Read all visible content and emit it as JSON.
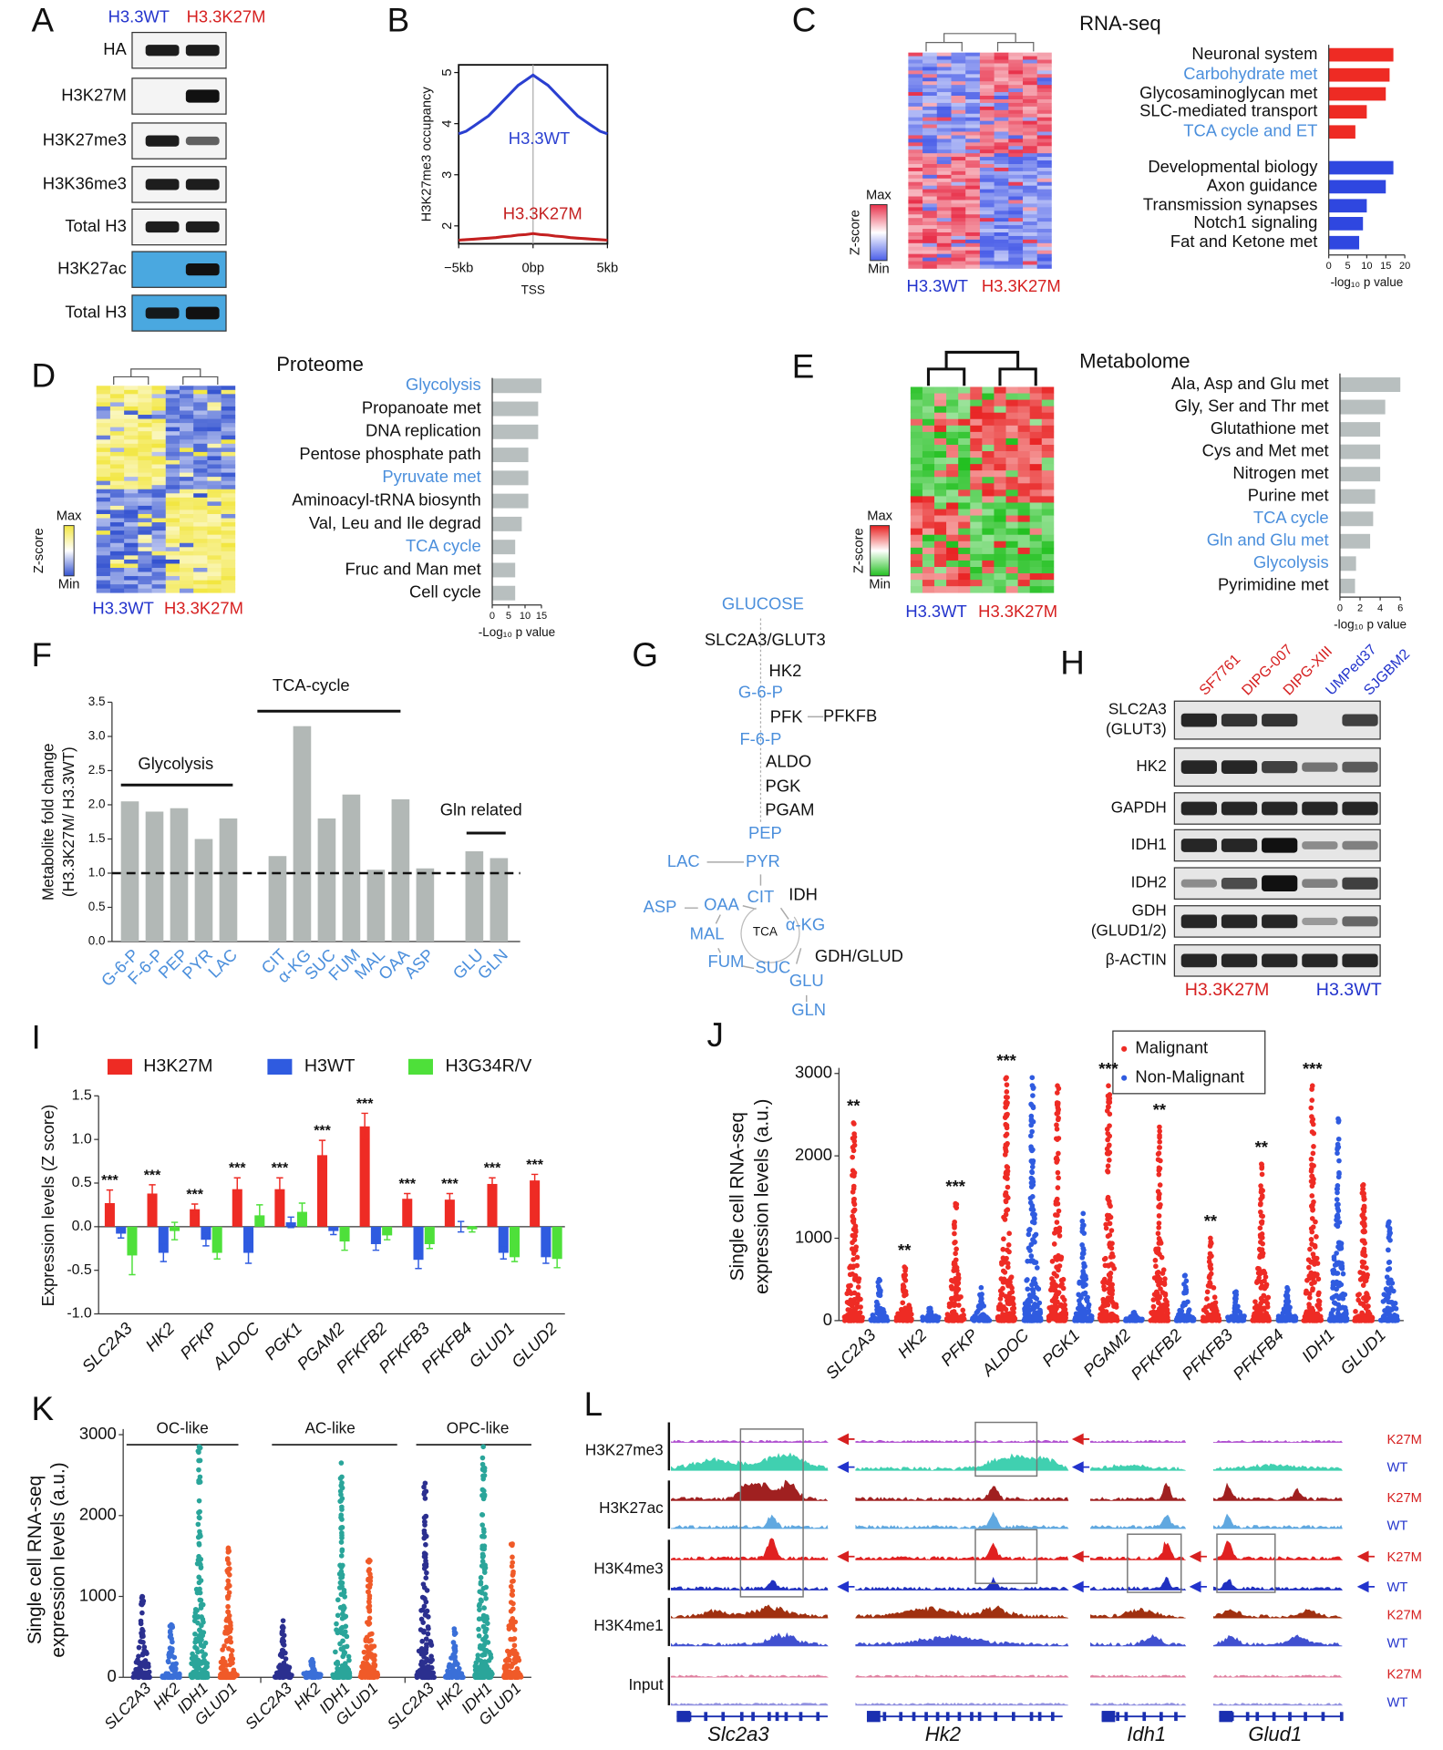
{
  "panel_labels": [
    "A",
    "B",
    "C",
    "D",
    "E",
    "F",
    "G",
    "H",
    "I",
    "J",
    "K",
    "L"
  ],
  "blot_a": {
    "columns": [
      "H3.3WT",
      "H3.3K27M"
    ],
    "column_colors": [
      "#2233cc",
      "#d62020"
    ],
    "rows": [
      "HA",
      "H3K27M",
      "H3K27me3",
      "H3K36me3",
      "Total H3",
      "H3K27ac",
      "Total H3"
    ]
  },
  "heatmap_c": {
    "columns": [
      "H3.3WT",
      "H3.3K27M"
    ],
    "scale_label": "Z-score",
    "max": "Max",
    "min": "Min"
  },
  "heatmap_d": {
    "columns": [
      "H3.3WT",
      "H3.3K27M"
    ],
    "scale_label": "Z-score",
    "max": "Max",
    "min": "Min"
  },
  "heatmap_e": {
    "columns": [
      "H3.3WT",
      "H3.3K27M"
    ],
    "scale_label": "Z-score",
    "max": "Max",
    "min": "Min"
  },
  "pathway_g": {
    "nodes": [
      {
        "label": "GLUCOSE",
        "color": "#4b8fdc"
      },
      {
        "label": "SLC2A3/GLUT3",
        "color": "#111111"
      },
      {
        "label": "HK2",
        "color": "#111111"
      },
      {
        "label": "G-6-P",
        "color": "#4b8fdc"
      },
      {
        "label": "PFK",
        "color": "#111111"
      },
      {
        "label": "PFKFB",
        "color": "#111111"
      },
      {
        "label": "F-6-P",
        "color": "#4b8fdc"
      },
      {
        "label": "ALDO",
        "color": "#111111"
      },
      {
        "label": "PGK",
        "color": "#111111"
      },
      {
        "label": "PGAM",
        "color": "#111111"
      },
      {
        "label": "PEP",
        "color": "#4b8fdc"
      },
      {
        "label": "PYR",
        "color": "#4b8fdc"
      },
      {
        "label": "LAC",
        "color": "#4b8fdc"
      },
      {
        "label": "CIT",
        "color": "#4b8fdc"
      },
      {
        "label": "IDH",
        "color": "#111111"
      },
      {
        "label": "OAA",
        "color": "#4b8fdc"
      },
      {
        "label": "ASP",
        "color": "#4b8fdc"
      },
      {
        "label": "α-KG",
        "color": "#4b8fdc"
      },
      {
        "label": "TCA",
        "color": "#111111"
      },
      {
        "label": "MAL",
        "color": "#4b8fdc"
      },
      {
        "label": "GDH/GLUD",
        "color": "#111111"
      },
      {
        "label": "FUM",
        "color": "#4b8fdc"
      },
      {
        "label": "SUC",
        "color": "#4b8fdc"
      },
      {
        "label": "GLU",
        "color": "#4b8fdc"
      },
      {
        "label": "GLN",
        "color": "#4b8fdc"
      }
    ]
  },
  "blot_h": {
    "columns": [
      "SF7761",
      "DIPG-007",
      "DIPG-XIII",
      "UMPed37",
      "SJGBM2"
    ],
    "column_colors": [
      "#d62020",
      "#d62020",
      "#d62020",
      "#2233cc",
      "#2233cc"
    ],
    "rows": [
      [
        "SLC2A3",
        "(GLUT3)"
      ],
      [
        "HK2"
      ],
      [
        "GAPDH"
      ],
      [
        "IDH1"
      ],
      [
        "IDH2"
      ],
      [
        "GDH",
        "(GLUD1/2)"
      ],
      [
        "β-ACTIN"
      ]
    ],
    "groups": [
      "H3.3K27M",
      "H3.3WT"
    ],
    "group_colors": [
      "#d62020",
      "#2233cc"
    ]
  },
  "tracks_l": {
    "marks": [
      "H3K27me3",
      "H3K27ac",
      "H3K4me3",
      "H3K4me1",
      "Input"
    ],
    "conditions": [
      "K27M",
      "WT"
    ],
    "condition_colors": [
      "#d62020",
      "#2233cc"
    ],
    "genes": [
      "Slc2a3",
      "Hk2",
      "Idh1",
      "Glud1"
    ]
  },
  "chart_data": [
    {
      "type": "line",
      "ylabel": "H3K27me3 occupancy",
      "xlabel": "TSS",
      "x": [
        -5,
        -4.5,
        -4,
        -3.5,
        -3,
        -2.5,
        -2,
        -1.5,
        -1,
        -0.5,
        0,
        0.5,
        1,
        1.5,
        2,
        2.5,
        3,
        3.5,
        4,
        4.5,
        5
      ],
      "xlim": [
        -5,
        5
      ],
      "xticks": [
        {
          "value": -5,
          "label": "−5kb"
        },
        {
          "value": 0,
          "label": "0bp"
        },
        {
          "value": 5,
          "label": "5kb"
        }
      ],
      "ylim": [
        1.65,
        5.15
      ],
      "yticks": [
        2,
        3,
        4,
        5
      ],
      "series": [
        {
          "name": "H3.3WT",
          "color": "#2a3fd0",
          "values": [
            3.8,
            3.85,
            3.95,
            4.05,
            4.15,
            4.3,
            4.45,
            4.6,
            4.75,
            4.85,
            4.95,
            4.85,
            4.75,
            4.6,
            4.45,
            4.3,
            4.15,
            4.05,
            3.95,
            3.85,
            3.8
          ]
        },
        {
          "name": "H3.3K27M",
          "color": "#c42020",
          "values": [
            1.72,
            1.73,
            1.74,
            1.75,
            1.76,
            1.77,
            1.79,
            1.8,
            1.82,
            1.83,
            1.85,
            1.83,
            1.82,
            1.8,
            1.79,
            1.77,
            1.76,
            1.75,
            1.74,
            1.73,
            1.72
          ]
        }
      ]
    },
    {
      "type": "hbar",
      "title": "RNA-seq",
      "xlabel": "-log₁₀ p value",
      "categories": [
        "Neuronal system",
        "Carbohydrate met",
        "Glycosaminoglycan met",
        "SLC-mediated transport",
        "TCA cycle and ET",
        "Developmental biology",
        "Axon guidance",
        "Transmission synapses",
        "Notch1 signaling",
        "Fat and Ketone met"
      ],
      "values": [
        17,
        16,
        15,
        10,
        7,
        17,
        15,
        10,
        9,
        8
      ],
      "colors": [
        "#ee2b24",
        "#ee2b24",
        "#ee2b24",
        "#ee2b24",
        "#ee2b24",
        "#2f47e0",
        "#2f47e0",
        "#2f47e0",
        "#2f47e0",
        "#2f47e0"
      ],
      "label_colors": [
        "#111111",
        "#4b8fdc",
        "#111111",
        "#111111",
        "#4b8fdc",
        "#111111",
        "#111111",
        "#111111",
        "#111111",
        "#111111"
      ],
      "xlim": [
        0,
        20
      ],
      "xticks": [
        0,
        5,
        10,
        15,
        20
      ]
    },
    {
      "type": "hbar",
      "title": "Proteome",
      "xlabel": "-Log₁₀ p value",
      "categories": [
        "Glycolysis",
        "Propanoate met",
        "DNA replication",
        "Pentose phosphate path",
        "Pyruvate met",
        "Aminoacyl-tRNA biosynth",
        "Val, Leu and Ile degrad",
        "TCA cycle",
        "Fruc and Man met",
        "Cell cycle"
      ],
      "values": [
        15,
        14,
        14,
        11,
        11,
        11,
        9,
        7,
        7,
        7
      ],
      "colors": [
        "#b8bfbf",
        "#b8bfbf",
        "#b8bfbf",
        "#b8bfbf",
        "#b8bfbf",
        "#b8bfbf",
        "#b8bfbf",
        "#b8bfbf",
        "#b8bfbf",
        "#b8bfbf"
      ],
      "label_colors": [
        "#4b8fdc",
        "#111111",
        "#111111",
        "#111111",
        "#4b8fdc",
        "#111111",
        "#111111",
        "#4b8fdc",
        "#111111",
        "#111111"
      ],
      "xlim": [
        0,
        15
      ],
      "xticks": [
        0,
        5,
        10,
        15
      ]
    },
    {
      "type": "hbar",
      "title": "Metabolome",
      "xlabel": "-log₁₀ p value",
      "categories": [
        "Ala, Asp and Glu met",
        "Gly, Ser and Thr met",
        "Glutathione met",
        "Cys and Met met",
        "Nitrogen met",
        "Purine met",
        "TCA cycle",
        "Gln and Glu met",
        "Glycolysis",
        "Pyrimidine met"
      ],
      "values": [
        6,
        4.5,
        4,
        4,
        4,
        3.5,
        3.3,
        3,
        1.6,
        1.5
      ],
      "colors": [
        "#b8bfbf",
        "#b8bfbf",
        "#b8bfbf",
        "#b8bfbf",
        "#b8bfbf",
        "#b8bfbf",
        "#b8bfbf",
        "#b8bfbf",
        "#b8bfbf",
        "#b8bfbf"
      ],
      "label_colors": [
        "#111111",
        "#111111",
        "#111111",
        "#111111",
        "#111111",
        "#111111",
        "#4b8fdc",
        "#4b8fdc",
        "#4b8fdc",
        "#111111"
      ],
      "xlim": [
        0,
        6
      ],
      "xticks": [
        0,
        2,
        4,
        6
      ]
    },
    {
      "type": "bar",
      "ylabel": [
        "Metabolite fold change",
        "(H3.3K27M/ H3.3WT)"
      ],
      "categories": [
        "G-6-P",
        "F-6-P",
        "PEP",
        "PYR",
        "LAC",
        null,
        "CIT",
        "α-KG",
        "SUC",
        "FUM",
        "MAL",
        "OAA",
        "ASP",
        null,
        "GLU",
        "GLN"
      ],
      "values": [
        2.05,
        1.9,
        1.95,
        1.5,
        1.8,
        null,
        1.25,
        3.15,
        1.8,
        2.15,
        1.05,
        2.08,
        1.07,
        null,
        1.32,
        1.22
      ],
      "color": "#b2b8b6",
      "label_color": "#4b8fdc",
      "group_labels": [
        "Glycolysis",
        "TCA-cycle",
        "Gln related"
      ],
      "reference_line": 1,
      "ylim": [
        0,
        3.5
      ],
      "yticks": [
        {
          "value": 0,
          "label": "0.0"
        },
        0.5,
        {
          "value": 1,
          "label": "1.0"
        },
        1.5,
        {
          "value": 2,
          "label": "2.0"
        },
        2.5,
        {
          "value": 3,
          "label": "3.0"
        },
        3.5
      ]
    },
    {
      "type": "grouped_bar",
      "ylabel": "Expression levels (Z score)",
      "categories": [
        "SLC2A3",
        "HK2",
        "PFKP",
        "ALDOC",
        "PGK1",
        "PGAM2",
        "PFKFB2",
        "PFKFB3",
        "PFKFB4",
        "GLUD1",
        "GLUD2"
      ],
      "series": [
        {
          "name": "H3K27M",
          "color": "#ee2b24",
          "values": [
            0.27,
            0.38,
            0.2,
            0.43,
            0.43,
            0.82,
            1.15,
            0.32,
            0.31,
            0.49,
            0.53
          ],
          "errors": [
            0.15,
            0.1,
            0.06,
            0.13,
            0.13,
            0.17,
            0.15,
            0.06,
            0.07,
            0.07,
            0.07
          ]
        },
        {
          "name": "H3WT",
          "color": "#2f5be0",
          "values": [
            -0.08,
            -0.3,
            -0.15,
            -0.3,
            0.05,
            -0.05,
            -0.2,
            -0.38,
            0.0,
            -0.3,
            -0.35
          ],
          "errors": [
            0.05,
            0.1,
            0.07,
            0.12,
            0.06,
            0.04,
            0.07,
            0.1,
            0.06,
            0.07,
            0.07
          ]
        },
        {
          "name": "H3G34R/V",
          "color": "#4ee03a",
          "values": [
            -0.33,
            -0.05,
            -0.3,
            0.13,
            0.17,
            -0.17,
            -0.1,
            -0.2,
            -0.03,
            -0.35,
            -0.37
          ],
          "errors": [
            0.22,
            0.1,
            0.07,
            0.12,
            0.1,
            0.1,
            0.05,
            0.05,
            0.03,
            0.05,
            0.1
          ]
        }
      ],
      "annotations": [
        "***",
        "***",
        "***",
        "***",
        "***",
        "***",
        "***",
        "***",
        "***",
        "***",
        "***"
      ],
      "ylim": [
        -1,
        1.5
      ],
      "yticks": [
        {
          "value": -1,
          "label": "-1.0"
        },
        -0.5,
        {
          "value": 0,
          "label": "0.0"
        },
        0.5,
        {
          "value": 1,
          "label": "1.0"
        },
        1.5
      ]
    },
    {
      "type": "strip",
      "ylabel": [
        "Single cell RNA-seq",
        "expression levels (a.u.)"
      ],
      "categories": [
        "SLC2A3",
        "HK2",
        "PFKP",
        "ALDOC",
        "PGK1",
        "PGAM2",
        "PFKFB2",
        "PFKFB3",
        "PFKFB4",
        "IDH1",
        "GLUD1"
      ],
      "series": [
        {
          "name": "Malignant",
          "color": "#ee2b24",
          "values": [
            2400,
            650,
            1420,
            2950,
            2850,
            2850,
            2350,
            1000,
            1900,
            2850,
            1650
          ]
        },
        {
          "name": "Non-Malignant",
          "color": "#2f5be0",
          "values": [
            500,
            150,
            400,
            2950,
            1300,
            100,
            550,
            350,
            400,
            2450,
            1200
          ]
        }
      ],
      "annotations": [
        "**",
        "**",
        "***",
        "***",
        null,
        "***",
        "**",
        "**",
        "**",
        "***",
        null
      ],
      "ylim": [
        0,
        3000
      ],
      "yticks": [
        0,
        1000,
        2000,
        3000
      ]
    },
    {
      "type": "strip_grouped",
      "ylabel": [
        "Single cell RNA-seq",
        "expression levels (a.u.)"
      ],
      "categories": [
        "SLC2A3",
        "HK2",
        "IDH1",
        "GLUD1"
      ],
      "colors": [
        "#2b2f8f",
        "#3a6fd8",
        "#2aa59a",
        "#f05a28"
      ],
      "groups": [
        {
          "name": "OC-like",
          "values": [
            1000,
            650,
            2850,
            1600
          ]
        },
        {
          "name": "AC-like",
          "values": [
            700,
            220,
            2650,
            1450
          ]
        },
        {
          "name": "OPC-like",
          "values": [
            2400,
            600,
            2850,
            1650
          ]
        }
      ],
      "ylim": [
        0,
        3000
      ],
      "yticks": [
        0,
        1000,
        2000,
        3000
      ]
    }
  ]
}
